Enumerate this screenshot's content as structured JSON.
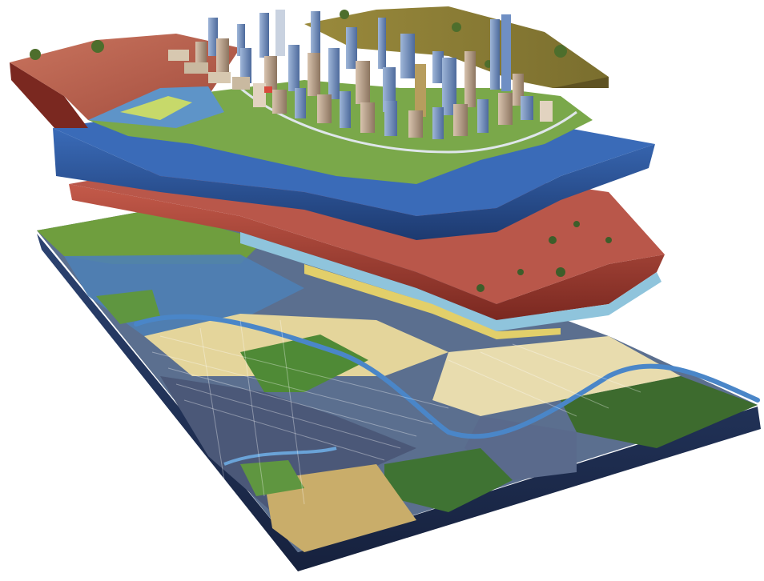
{
  "illustration": {
    "subject": "",
    "layers": [
      {
        "name": "city-surface"
      },
      {
        "name": "water-stratum"
      },
      {
        "name": "clay-stratum"
      },
      {
        "name": "urban-land-use-base"
      }
    ],
    "palette": {
      "red_soil": "#b9574a",
      "red_soil_dark": "#8a2e25",
      "blue_stratum": "#2f5fa8",
      "blue_stratum_dark": "#1e3f78",
      "grass": "#6f9e3e",
      "forest": "#3d6b2e",
      "urban_grey": "#586a8a",
      "sand": "#d9c98c",
      "river": "#4a86c8",
      "base_edge": "#1c2a4a"
    }
  }
}
